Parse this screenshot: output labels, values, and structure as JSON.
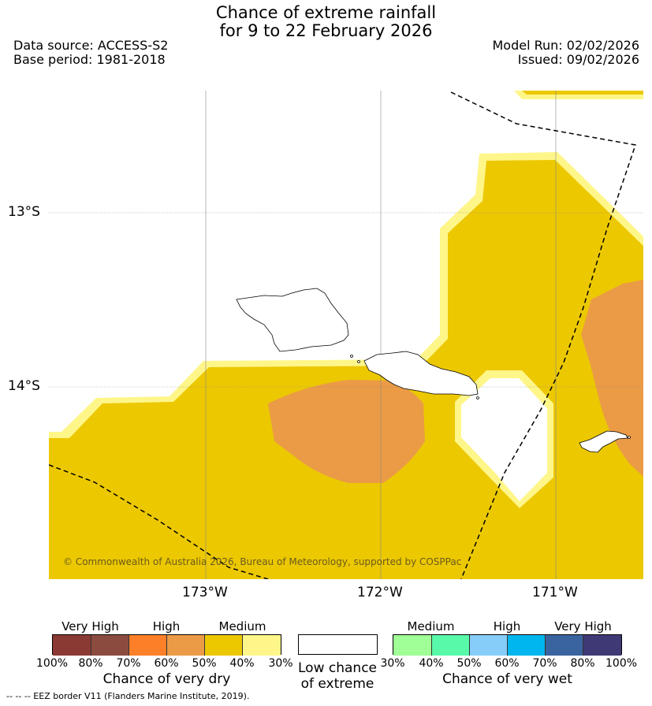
{
  "title_line1": "Chance of extreme rainfall",
  "title_line2": "for 9 to 22 February 2026",
  "data_source": "Data source: ACCESS-S2",
  "base_period": "Base period: 1981-2018",
  "model_run": "Model Run: 02/02/2026",
  "issued": "Issued: 09/02/2026",
  "map": {
    "lat_labels": [
      "13°S",
      "14°S"
    ],
    "lon_labels": [
      "173°W",
      "172°W",
      "171°W"
    ],
    "copyright": "© Commonwealth of Australia 2026, Bureau of Meteorology, supported by COSPPac",
    "colors": {
      "medium_dry": "#ecc800",
      "medium_dry_light": "#fff68a",
      "high_dry": "#eb9b46",
      "border": "#000000"
    }
  },
  "legend": {
    "dry": {
      "categories": [
        "Very High",
        "High",
        "Medium"
      ],
      "ticks": [
        "100%",
        "80%",
        "70%",
        "60%",
        "50%",
        "40%",
        "30%"
      ],
      "colors": [
        "#8b3a33",
        "#8b4c3f",
        "#fd7f27",
        "#eb9b46",
        "#ecc800",
        "#fff68a"
      ],
      "title": "Chance of very dry"
    },
    "low": {
      "title_line1": "Low chance",
      "title_line2": "of extreme",
      "color": "#ffffff"
    },
    "wet": {
      "categories": [
        "Medium",
        "High",
        "Very High"
      ],
      "ticks": [
        "30%",
        "40%",
        "50%",
        "60%",
        "70%",
        "80%",
        "100%"
      ],
      "colors": [
        "#a0ff96",
        "#58f9a8",
        "#87cdf9",
        "#00b6ee",
        "#3a649f",
        "#3f3a75"
      ],
      "title": "Chance of very wet"
    }
  },
  "footnote": "-- -- -- EEZ border V11 (Flanders Marine Institute, 2019)."
}
